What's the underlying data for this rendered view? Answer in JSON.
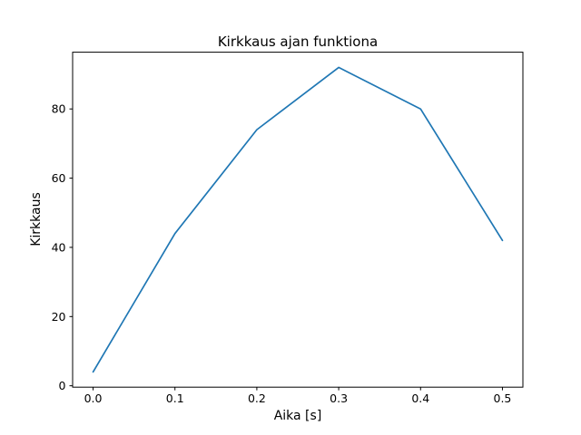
{
  "figure": {
    "background": "#ffffff"
  },
  "chart_data": {
    "type": "line",
    "title": "Kirkkaus ajan funktiona",
    "xlabel": "Aika [s]",
    "ylabel": "Kirkkaus",
    "x": [
      0.0,
      0.1,
      0.2,
      0.3,
      0.4,
      0.5
    ],
    "y": [
      4,
      44,
      74,
      92,
      80,
      42
    ],
    "series_name": "Kirkkaus",
    "xlim": [
      -0.025,
      0.525
    ],
    "ylim": [
      -0.4,
      96.4
    ],
    "xtick_values": [
      0.0,
      0.1,
      0.2,
      0.3,
      0.4,
      0.5
    ],
    "xtick_labels": [
      "0.0",
      "0.1",
      "0.2",
      "0.3",
      "0.4",
      "0.5"
    ],
    "ytick_values": [
      0,
      20,
      40,
      60,
      80
    ],
    "ytick_labels": [
      "0",
      "20",
      "40",
      "60",
      "80"
    ],
    "grid": false,
    "legend": null,
    "line_color": "#1f77b4",
    "axis_color": "#000000",
    "text_color": "#000000"
  }
}
